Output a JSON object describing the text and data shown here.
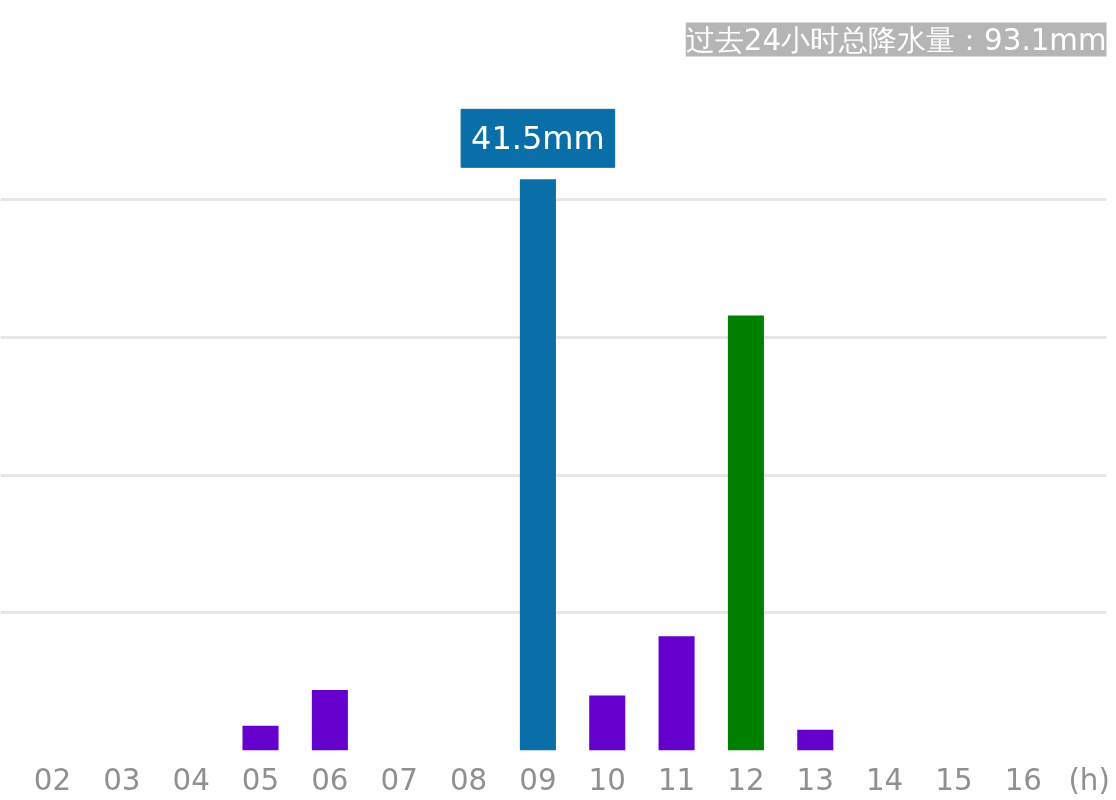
{
  "chart_data": {
    "type": "bar",
    "title": "过去24小时总降水量：93.1mm",
    "xlabel": "(h)",
    "categories": [
      "02",
      "03",
      "04",
      "05",
      "06",
      "07",
      "08",
      "09",
      "10",
      "11",
      "12",
      "13",
      "14",
      "15",
      "16"
    ],
    "values": [
      0,
      0,
      0,
      1.8,
      4.4,
      0,
      0,
      41.5,
      4.0,
      8.3,
      31.6,
      1.5,
      0,
      0,
      0
    ],
    "colors": [
      "#6600cc",
      "#6600cc",
      "#6600cc",
      "#6600cc",
      "#6600cc",
      "#6600cc",
      "#6600cc",
      "#0a6ea8",
      "#6600cc",
      "#6600cc",
      "#008000",
      "#6600cc",
      "#6600cc",
      "#6600cc",
      "#6600cc"
    ],
    "value_labels": [
      null,
      null,
      null,
      null,
      null,
      null,
      null,
      "41.5mm",
      null,
      null,
      null,
      null,
      null,
      null,
      null
    ],
    "grid": "y",
    "tick_labels": "x"
  }
}
